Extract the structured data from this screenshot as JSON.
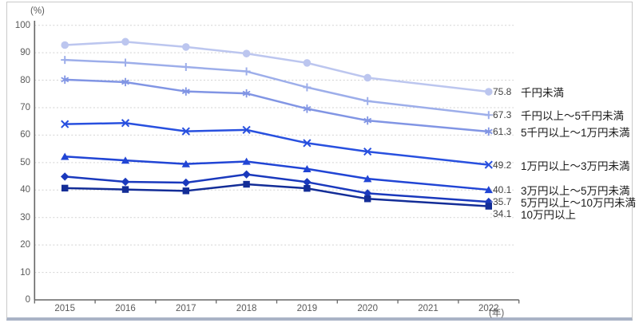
{
  "units": {
    "y": "(%)",
    "x": "(年)"
  },
  "chart_data": {
    "type": "line",
    "title": "",
    "xlabel": "(年)",
    "ylabel": "(%)",
    "ylim": [
      0,
      100
    ],
    "ytick_step": 10,
    "grid": "horizontal dotted",
    "legend_position": "right of line ends",
    "x_tick_labels": [
      "2015",
      "2016",
      "2017",
      "2018",
      "2019",
      "2020",
      "2021",
      "2022"
    ],
    "y_tick_labels": [
      "100",
      "90",
      "80",
      "70",
      "60",
      "50",
      "40",
      "30",
      "20",
      "10",
      "0"
    ],
    "x": [
      2015,
      2016,
      2017,
      2018,
      2019,
      2020,
      2021,
      2022
    ],
    "gap_note": "2021 has no data point; lines connect 2020 to 2022",
    "series": [
      {
        "label": "千円未満",
        "marker": "circle",
        "color": "#bcc6ef",
        "end_value": "75.8",
        "values": [
          92.8,
          94.0,
          92.1,
          89.7,
          86.3,
          80.9,
          null,
          75.8
        ]
      },
      {
        "label": "千円以上～5千円未満",
        "marker": "plus",
        "color": "#9daeea",
        "end_value": "67.3",
        "values": [
          87.4,
          86.4,
          84.8,
          83.2,
          77.4,
          72.4,
          null,
          67.3
        ]
      },
      {
        "label": "5千円以上～1万円未満",
        "marker": "asterisk",
        "color": "#8195e4",
        "end_value": "61.3",
        "values": [
          80.2,
          79.3,
          75.9,
          75.2,
          69.6,
          65.3,
          null,
          61.3
        ]
      },
      {
        "label": "1万円以上～3万円未満",
        "marker": "x",
        "color": "#2850df",
        "end_value": "49.2",
        "values": [
          64.0,
          64.4,
          61.4,
          61.9,
          57.1,
          54.0,
          null,
          49.2
        ]
      },
      {
        "label": "3万円以上～5万円未満",
        "marker": "triangle",
        "color": "#2145d5",
        "end_value": "40.1",
        "values": [
          52.2,
          50.8,
          49.5,
          50.4,
          47.7,
          44.1,
          null,
          40.1
        ]
      },
      {
        "label": "5万円以上～10万円未満",
        "marker": "diamond",
        "color": "#1a39bd",
        "end_value": "35.7",
        "values": [
          44.9,
          43.0,
          42.7,
          45.7,
          42.9,
          38.8,
          null,
          35.7
        ]
      },
      {
        "label": "10万円以上",
        "marker": "square",
        "color": "#132d97",
        "end_value": "34.1",
        "values": [
          40.7,
          40.2,
          39.7,
          42.1,
          40.6,
          36.8,
          null,
          34.1
        ]
      }
    ]
  },
  "style": {
    "grid_color": "#d2d2d2",
    "axis_color": "#666666",
    "tick_text_color": "#595959",
    "end_value_color": "#404040",
    "legend_text_color": "#1a1a1a",
    "frame_border_color": "#c9c9c9",
    "frame_bottom_color": "#a9b3c6"
  }
}
